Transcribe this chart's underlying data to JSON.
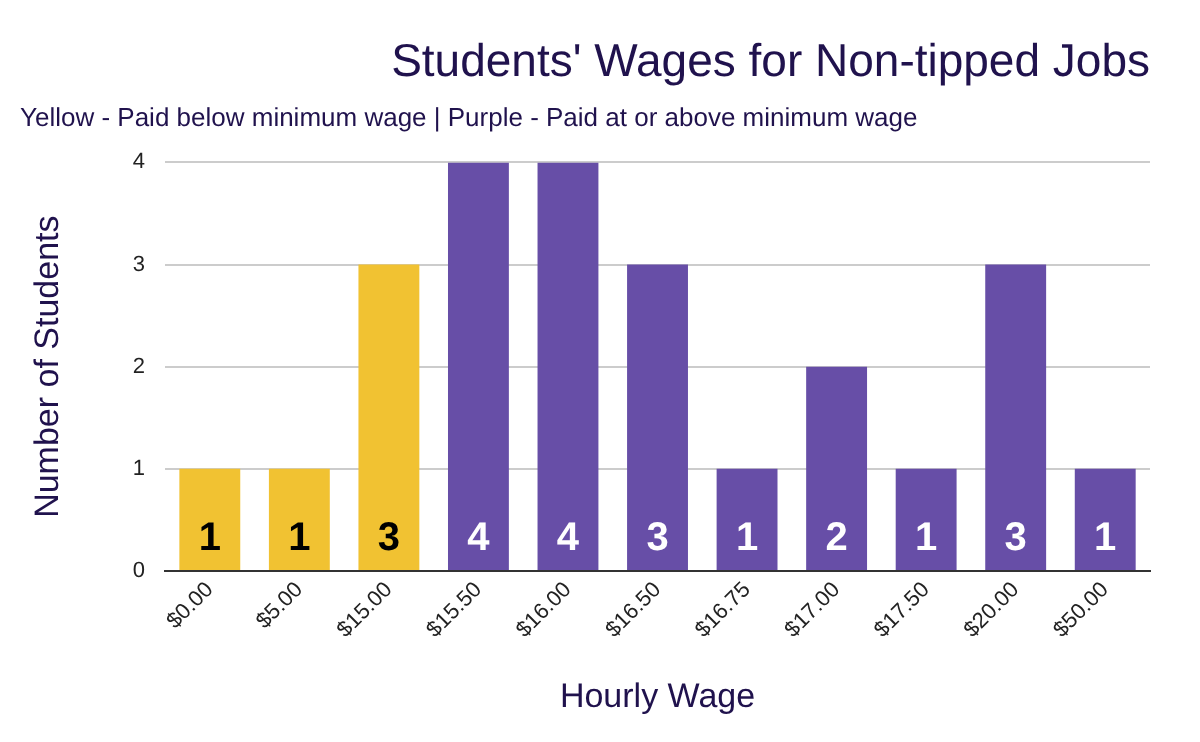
{
  "chart_data": {
    "type": "bar",
    "title": "Students' Wages for Non-tipped Jobs",
    "subtitle": "Yellow - Paid below minimum wage | Purple - Paid at or above minimum wage",
    "xlabel": "Hourly Wage",
    "ylabel": "Number of Students",
    "categories": [
      "$0.00",
      "$5.00",
      "$15.00",
      "$15.50",
      "$16.00",
      "$16.50",
      "$16.75",
      "$17.00",
      "$17.50",
      "$20.00",
      "$50.00"
    ],
    "values": [
      1,
      1,
      3,
      4,
      4,
      3,
      1,
      2,
      1,
      3,
      1
    ],
    "colors": [
      "#f1c232",
      "#f1c232",
      "#f1c232",
      "#674ea7",
      "#674ea7",
      "#674ea7",
      "#674ea7",
      "#674ea7",
      "#674ea7",
      "#674ea7",
      "#674ea7"
    ],
    "ylim": [
      0,
      4
    ],
    "yticks": [
      0,
      1,
      2,
      3,
      4
    ],
    "grid": "y",
    "data_labels": true
  }
}
